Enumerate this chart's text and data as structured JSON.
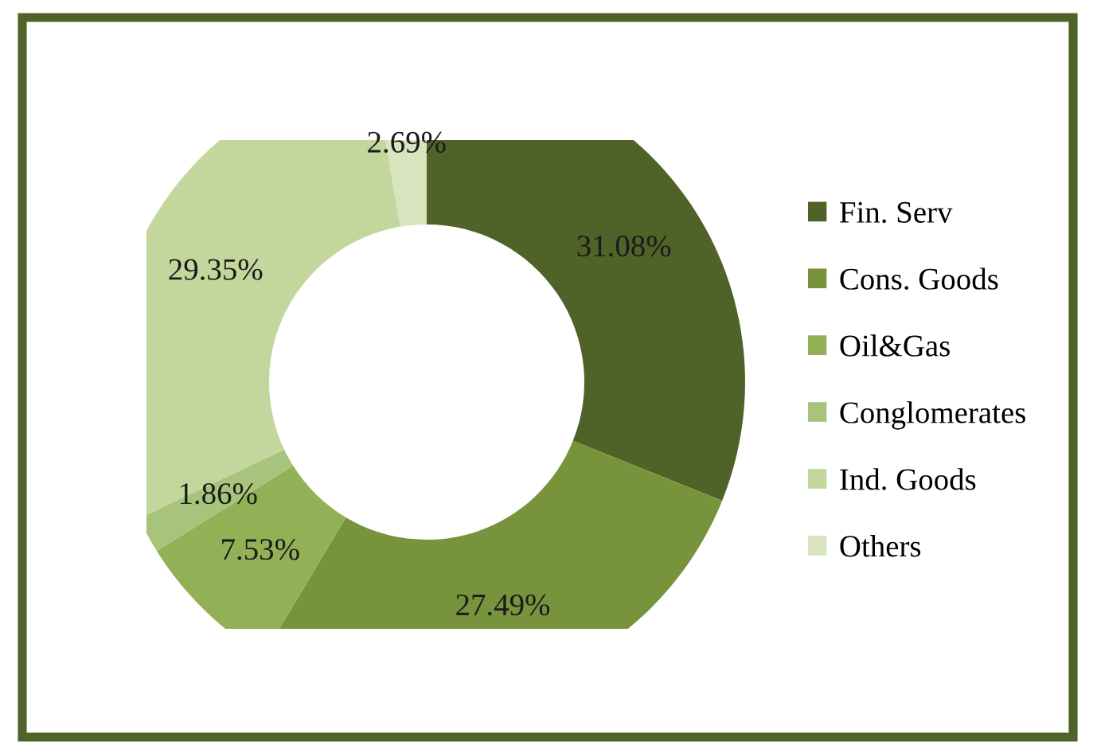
{
  "chart_data": {
    "type": "donut",
    "categories": [
      "Fin. Serv",
      "Cons. Goods",
      "Oil&Gas",
      "Conglomerates",
      "Ind. Goods",
      "Others"
    ],
    "values": [
      31.08,
      27.49,
      7.53,
      1.86,
      29.35,
      2.69
    ],
    "colors": [
      "#4f6228",
      "#77933c",
      "#92b055",
      "#a8c47c",
      "#c3d69b",
      "#d7e4bd"
    ],
    "value_labels": [
      "31.08%",
      "27.49%",
      "7.53%",
      "1.86%",
      "29.35%",
      "2.69%"
    ],
    "legend": "right"
  }
}
